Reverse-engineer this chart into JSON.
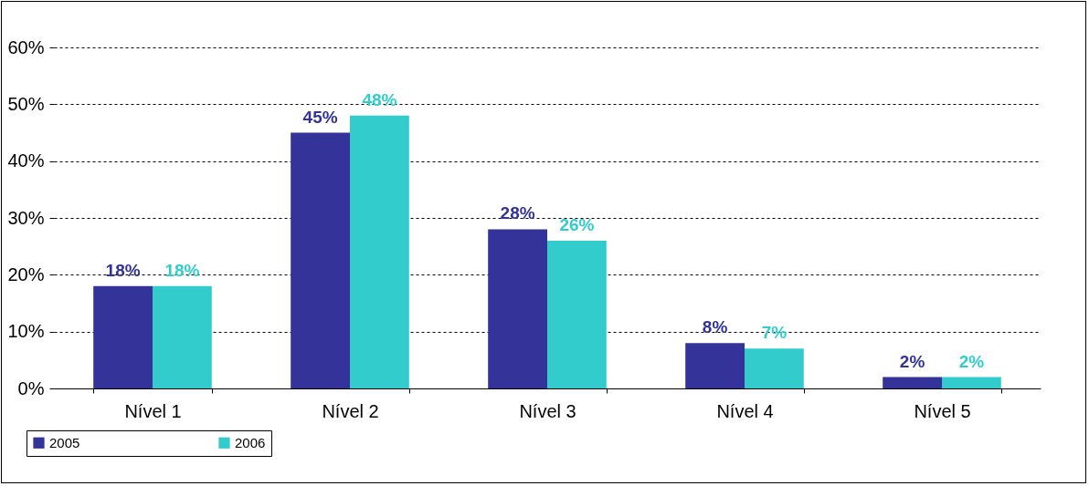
{
  "chart_data": {
    "type": "bar",
    "categories": [
      "Nível 1",
      "Nível 2",
      "Nível 3",
      "Nível 4",
      "Nível 5"
    ],
    "series": [
      {
        "name": "2005",
        "color": "#333399",
        "values": [
          18,
          45,
          28,
          8,
          2
        ],
        "value_labels": [
          "18%",
          "45%",
          "28%",
          "8%",
          "2%"
        ]
      },
      {
        "name": "2006",
        "color": "#33cccc",
        "values": [
          18,
          48,
          26,
          7,
          2
        ],
        "value_labels": [
          "18%",
          "48%",
          "26%",
          "7%",
          "2%"
        ]
      }
    ],
    "ylim": [
      0,
      60
    ],
    "yticks": [
      {
        "value": 0,
        "label": "0%"
      },
      {
        "value": 10,
        "label": "10%"
      },
      {
        "value": 20,
        "label": "20%"
      },
      {
        "value": 30,
        "label": "30%"
      },
      {
        "value": 40,
        "label": "40%"
      },
      {
        "value": 50,
        "label": "50%"
      },
      {
        "value": 60,
        "label": "60%"
      }
    ],
    "grid": "y",
    "legend": "bottom left"
  }
}
